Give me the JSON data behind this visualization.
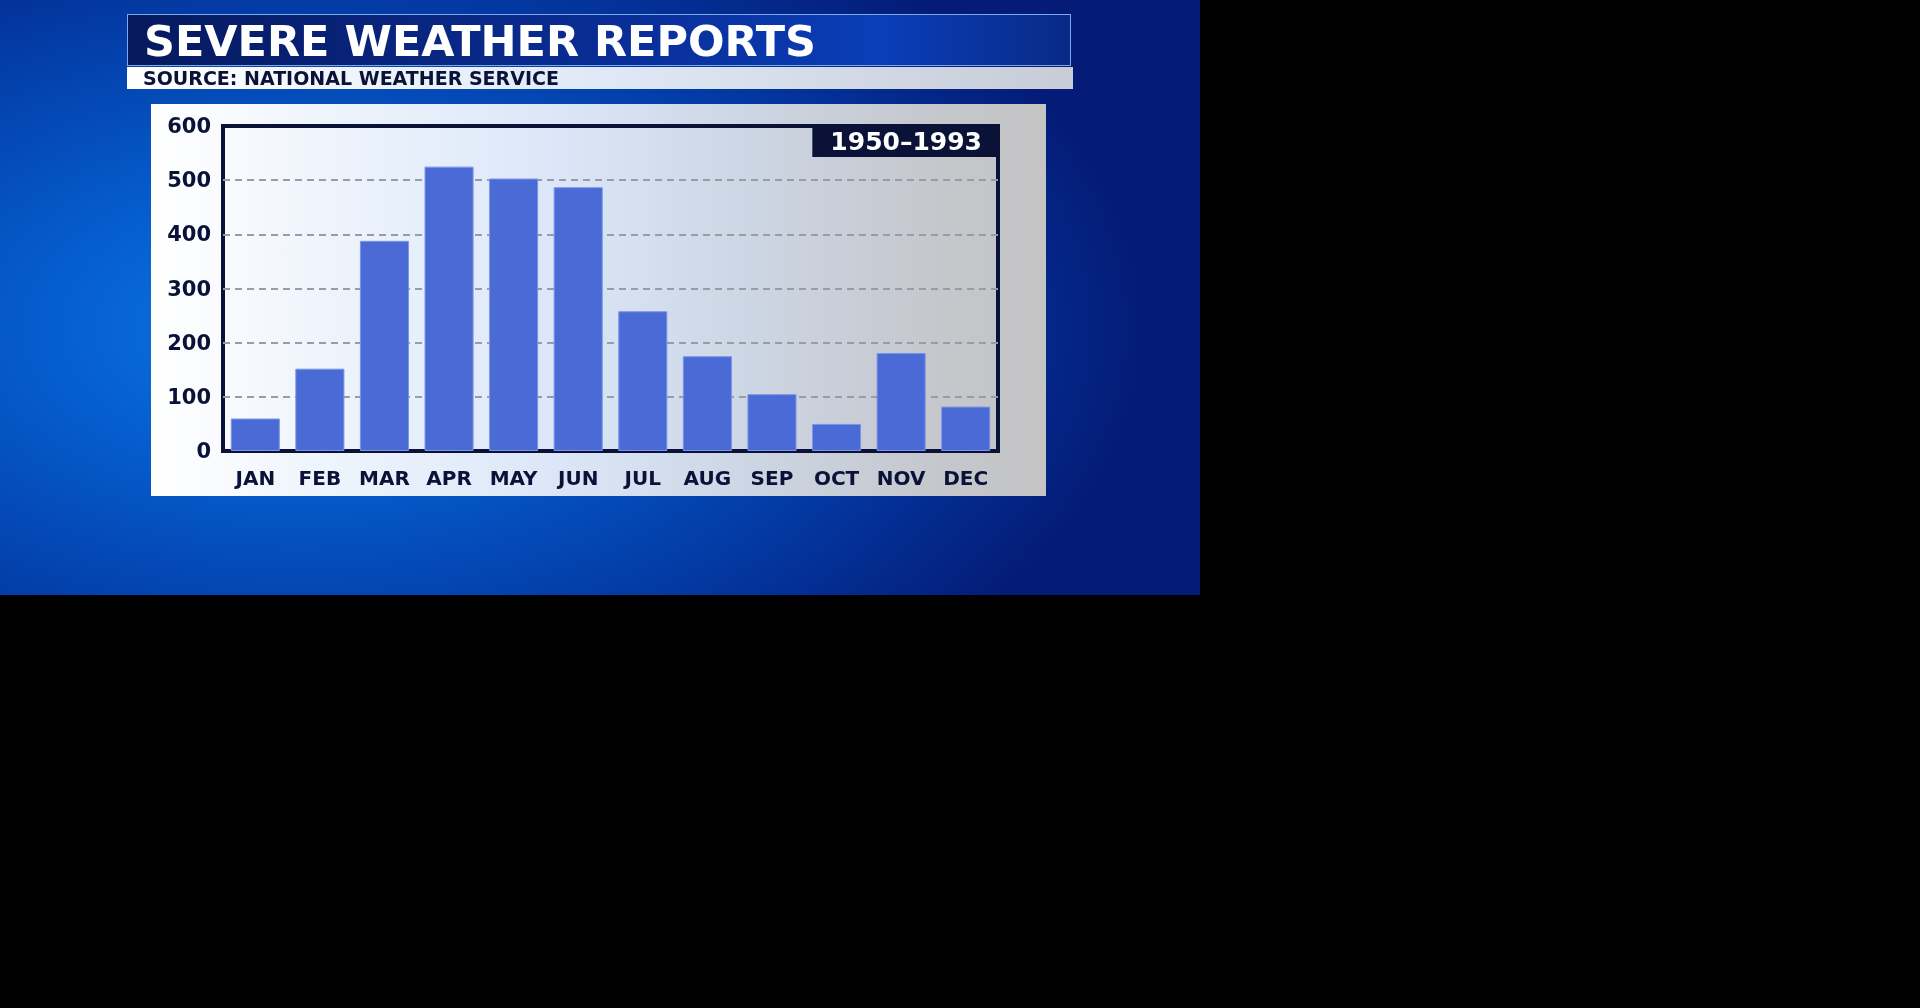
{
  "chart_data": {
    "type": "bar",
    "title": "SEVERE WEATHER REPORTS",
    "subtitle": "1950–1993",
    "annotations": [
      "SOURCE: NATIONAL WEATHER SERVICE"
    ],
    "categories": [
      "JAN",
      "FEB",
      "MAR",
      "APR",
      "MAY",
      "JUN",
      "JUL",
      "AUG",
      "SEP",
      "OCT",
      "NOV",
      "DEC"
    ],
    "values": [
      60,
      152,
      388,
      525,
      503,
      487,
      258,
      175,
      105,
      50,
      181,
      82
    ],
    "color": "#4a6bd6",
    "ylim": [
      0,
      600
    ],
    "yticks": [
      0,
      100,
      200,
      300,
      400,
      500,
      600
    ],
    "grid": "y"
  }
}
